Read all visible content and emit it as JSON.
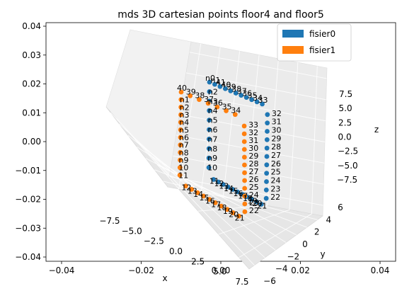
{
  "chart_data": {
    "type": "scatter",
    "title": "mds 3D cartesian points floor4 and floor5",
    "outer_ylim": [
      -0.04,
      0.04
    ],
    "outer_xlim": [
      -0.04,
      0.04
    ],
    "outer_yticks": [
      "0.04",
      "0.03",
      "0.02",
      "0.01",
      "0.00",
      "−0.01",
      "−0.02",
      "−0.03",
      "−0.04"
    ],
    "outer_xticks": [
      "−0.04",
      "−0.02",
      "0.00",
      "0.02",
      "0.04"
    ],
    "xlabel": "x",
    "ylabel": "y",
    "zlabel": "z",
    "x_ticks": [
      "−7.5",
      "−5.0",
      "−2.5",
      "0.0",
      "2.5",
      "5.0",
      "7.5"
    ],
    "y_ticks": [
      "−6",
      "−4",
      "−2",
      "0",
      "2",
      "4",
      "6"
    ],
    "z_ticks": [
      "7.5",
      "5.0",
      "2.5",
      "0.0",
      "−2.5",
      "−5.0",
      "−7.5"
    ],
    "grid": true,
    "legend_position": "top-right",
    "series": [
      {
        "name": "fisier0",
        "color": "#1f77b4",
        "top_labels": [
          "n0",
          "n1",
          "41",
          "40",
          "39",
          "38",
          "37",
          "36",
          "35",
          "34",
          "33"
        ],
        "left_labels": [
          "n2",
          "n3",
          "n4",
          "n5",
          "n6",
          "n7",
          "n8",
          "n9",
          "10"
        ],
        "right_labels": [
          "32",
          "31",
          "30",
          "29",
          "28",
          "27",
          "26",
          "25",
          "24",
          "23",
          "22"
        ],
        "bottom_labels": [
          "11",
          "12",
          "13",
          "14",
          "15",
          "16",
          "17",
          "18",
          "19",
          "20",
          "21"
        ]
      },
      {
        "name": "fisier1",
        "color": "#ff7f0e",
        "top_labels": [
          "40",
          "39",
          "38",
          "37",
          "36",
          "35",
          "34"
        ],
        "left_labels": [
          "n1",
          "n2",
          "n3",
          "n4",
          "n5",
          "n6",
          "n7",
          "n8",
          "n9",
          "10",
          "11"
        ],
        "right_labels": [
          "33",
          "32",
          "31",
          "30",
          "29",
          "28",
          "27",
          "26",
          "25",
          "24",
          "23",
          "22"
        ],
        "bottom_labels": [
          "12",
          "13",
          "14",
          "15",
          "16",
          "17",
          "18",
          "19",
          "20",
          "21"
        ]
      }
    ]
  }
}
